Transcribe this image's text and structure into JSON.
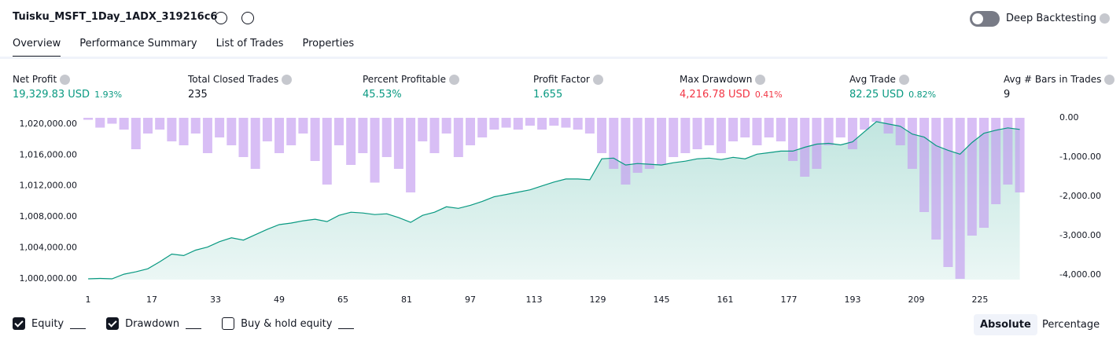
{
  "header": {
    "title": "Tuisku_MSFT_1Day_1ADX_319216c6",
    "deep_backtesting": "Deep Backtesting"
  },
  "tabs": [
    "Overview",
    "Performance Summary",
    "List of Trades",
    "Properties"
  ],
  "metrics": [
    {
      "label": "Net Profit",
      "value": "19,329.83 USD",
      "pct": "1.93%",
      "color": "#089981"
    },
    {
      "label": "Total Closed Trades",
      "value": "235",
      "color": "#131722"
    },
    {
      "label": "Percent Profitable",
      "value": "45.53%",
      "color": "#089981"
    },
    {
      "label": "Profit Factor",
      "value": "1.655",
      "color": "#089981"
    },
    {
      "label": "Max Drawdown",
      "value": "4,216.78 USD",
      "pct": "0.41%",
      "color": "#f23645"
    },
    {
      "label": "Avg Trade",
      "value": "82.25 USD",
      "pct": "0.82%",
      "color": "#089981"
    },
    {
      "label": "Avg # Bars in Trades",
      "value": "9",
      "color": "#131722"
    }
  ],
  "chart_data": {
    "type": "equity",
    "x": [
      1,
      4,
      7,
      10,
      13,
      16,
      19,
      22,
      25,
      28,
      31,
      34,
      37,
      40,
      43,
      46,
      49,
      52,
      55,
      58,
      61,
      64,
      67,
      70,
      73,
      76,
      79,
      82,
      85,
      88,
      91,
      94,
      97,
      100,
      103,
      106,
      109,
      112,
      115,
      118,
      121,
      124,
      127,
      130,
      133,
      136,
      139,
      142,
      145,
      148,
      151,
      154,
      157,
      160,
      163,
      166,
      169,
      172,
      175,
      178,
      181,
      184,
      187,
      190,
      193,
      196,
      199,
      202,
      205,
      208,
      211,
      214,
      217,
      220,
      223,
      226,
      229,
      232,
      235
    ],
    "series": [
      {
        "name": "Equity",
        "color": "#089981",
        "values": [
          1000000,
          1000050,
          1000000,
          1000600,
          1000900,
          1001300,
          1002200,
          1003200,
          1003000,
          1003700,
          1004100,
          1004800,
          1005300,
          1005000,
          1005700,
          1006400,
          1007000,
          1007200,
          1007500,
          1007700,
          1007400,
          1008200,
          1008600,
          1008500,
          1008300,
          1008400,
          1007900,
          1007300,
          1008200,
          1008600,
          1009300,
          1009100,
          1009500,
          1010000,
          1010600,
          1010900,
          1011200,
          1011500,
          1012000,
          1012500,
          1012900,
          1012900,
          1012800,
          1015500,
          1015600,
          1014700,
          1014900,
          1014800,
          1014700,
          1015000,
          1015200,
          1015500,
          1015600,
          1015400,
          1015700,
          1015500,
          1016100,
          1016300,
          1016500,
          1016500,
          1017000,
          1017400,
          1017500,
          1017300,
          1017700,
          1019000,
          1020300,
          1020000,
          1019700,
          1018700,
          1018300,
          1017200,
          1016600,
          1016100,
          1017600,
          1018800,
          1019200,
          1019500,
          1019300
        ]
      },
      {
        "name": "Drawdown",
        "color": "#c39bf0",
        "axis": "y2",
        "values": [
          -50,
          -250,
          -150,
          -300,
          -800,
          -400,
          -300,
          -600,
          -700,
          -400,
          -900,
          -500,
          -700,
          -1000,
          -1300,
          -600,
          -900,
          -700,
          -400,
          -1100,
          -1700,
          -700,
          -1200,
          -900,
          -1650,
          -1000,
          -1300,
          -1900,
          -600,
          -900,
          -400,
          -1000,
          -700,
          -500,
          -300,
          -250,
          -300,
          -200,
          -300,
          -200,
          -250,
          -300,
          -400,
          -900,
          -1300,
          -1700,
          -1400,
          -1300,
          -1200,
          -1000,
          -900,
          -800,
          -700,
          -900,
          -600,
          -500,
          -700,
          -500,
          -600,
          -1100,
          -1500,
          -1300,
          -700,
          -500,
          -800,
          -300,
          -100,
          -400,
          -700,
          -1300,
          -2400,
          -3100,
          -3800,
          -4100,
          -3000,
          -2800,
          -2200,
          -1700,
          -1900
        ]
      }
    ],
    "legend_extra": "Buy & hold equity",
    "xlim": [
      0,
      242
    ],
    "xticks": [
      1,
      17,
      33,
      49,
      65,
      81,
      97,
      113,
      129,
      145,
      161,
      177,
      193,
      209,
      225
    ],
    "ylim": [
      999900,
      1020800
    ],
    "yticks": [
      {
        "value": 1000000,
        "label": "1,000,000.00"
      },
      {
        "value": 1004000,
        "label": "1,004,000.00"
      },
      {
        "value": 1008000,
        "label": "1,008,000.00"
      },
      {
        "value": 1012000,
        "label": "1,012,000.00"
      },
      {
        "value": 1016000,
        "label": "1,016,000.00"
      },
      {
        "value": 1020000,
        "label": "1,020,000.00"
      }
    ],
    "y2lim": [
      -4120,
      0
    ],
    "y2ticks": [
      {
        "value": 0,
        "label": "0.00"
      },
      {
        "value": -1000,
        "label": "-1,000.00"
      },
      {
        "value": -2000,
        "label": "-2,000.00"
      },
      {
        "value": -3000,
        "label": "-3,000.00"
      },
      {
        "value": -4000,
        "label": "-4,000.00"
      }
    ]
  },
  "view_buttons": [
    "Absolute",
    "Percentage"
  ]
}
